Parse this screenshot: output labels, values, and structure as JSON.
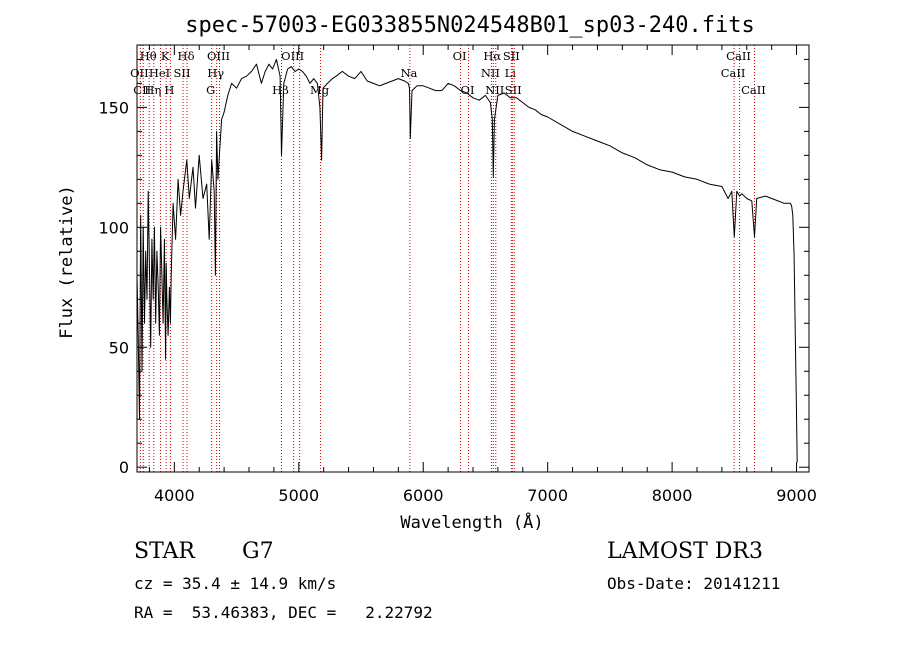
{
  "chart_data": {
    "type": "line",
    "title": "spec-57003-EG033855N024548B01_sp03-240.fits",
    "xlabel": "Wavelength (Å)",
    "ylabel": "Flux (relative)",
    "xlim": [
      3700,
      9100
    ],
    "ylim": [
      -2,
      176
    ],
    "xticks": [
      4000,
      5000,
      6000,
      7000,
      8000,
      9000
    ],
    "yticks": [
      0,
      50,
      100,
      150
    ],
    "series": [
      {
        "x": [
          3700,
          3710,
          3720,
          3730,
          3740,
          3750,
          3760,
          3770,
          3780,
          3790,
          3800,
          3810,
          3820,
          3830,
          3840,
          3850,
          3860,
          3870,
          3880,
          3890,
          3900,
          3910,
          3920,
          3930,
          3935,
          3940,
          3950,
          3960,
          3968,
          3975,
          3990,
          4010,
          4030,
          4050,
          4070,
          4100,
          4120,
          4150,
          4170,
          4200,
          4230,
          4260,
          4280,
          4300,
          4320,
          4330,
          4340,
          4350,
          4380,
          4400,
          4430,
          4460,
          4500,
          4540,
          4580,
          4620,
          4660,
          4700,
          4730,
          4760,
          4790,
          4820,
          4850,
          4861,
          4880,
          4910,
          4940,
          4970,
          5000,
          5030,
          5060,
          5090,
          5120,
          5150,
          5170,
          5183,
          5195,
          5230,
          5270,
          5300,
          5350,
          5400,
          5450,
          5500,
          5550,
          5600,
          5650,
          5700,
          5750,
          5800,
          5850,
          5880,
          5890,
          5896,
          5910,
          5950,
          6000,
          6050,
          6100,
          6150,
          6200,
          6250,
          6300,
          6350,
          6400,
          6450,
          6500,
          6540,
          6555,
          6563,
          6572,
          6600,
          6650,
          6700,
          6750,
          6800,
          6850,
          6900,
          6950,
          7000,
          7100,
          7200,
          7300,
          7400,
          7500,
          7600,
          7700,
          7800,
          7900,
          8000,
          8100,
          8200,
          8300,
          8400,
          8450,
          8480,
          8500,
          8520,
          8542,
          8560,
          8600,
          8640,
          8662,
          8680,
          8750,
          8800,
          8850,
          8900,
          8950,
          8960,
          8970,
          8980,
          8990,
          9000,
          9005
        ],
        "values": [
          80,
          55,
          20,
          105,
          40,
          100,
          60,
          90,
          70,
          115,
          85,
          50,
          95,
          70,
          100,
          60,
          90,
          75,
          55,
          100,
          80,
          60,
          95,
          45,
          85,
          70,
          55,
          75,
          60,
          80,
          110,
          95,
          120,
          105,
          115,
          128,
          112,
          125,
          108,
          130,
          112,
          118,
          95,
          128,
          115,
          80,
          140,
          120,
          145,
          148,
          155,
          160,
          158,
          162,
          163,
          165,
          168,
          160,
          165,
          168,
          166,
          170,
          163,
          130,
          160,
          166,
          167,
          165,
          166,
          165,
          163,
          160,
          162,
          160,
          150,
          128,
          158,
          160,
          162,
          163,
          165,
          163,
          162,
          165,
          161,
          160,
          159,
          160,
          161,
          162,
          161,
          160,
          158,
          137,
          157,
          159,
          159,
          158,
          157,
          157,
          160,
          159,
          157,
          156,
          154,
          153,
          155,
          152,
          145,
          121,
          145,
          155,
          156,
          154,
          154,
          152,
          150,
          149,
          147,
          146,
          143,
          140,
          138,
          136,
          134,
          131,
          129,
          126,
          124,
          123,
          121,
          120,
          118,
          117,
          112,
          115,
          96,
          115,
          113,
          114,
          112,
          111,
          96,
          112,
          113,
          112,
          111,
          110,
          110,
          109,
          105,
          88,
          55,
          20,
          2
        ]
      }
    ],
    "line_markers": [
      {
        "w": 3727,
        "label": "OII",
        "row": 1
      },
      {
        "w": 3750,
        "label": "CII",
        "row": 2
      },
      {
        "w": 3798,
        "label": "Hθ",
        "row": 0
      },
      {
        "w": 3835,
        "label": "Hη",
        "row": 2
      },
      {
        "w": 3889,
        "label": "HeI",
        "row": 1
      },
      {
        "w": 3934,
        "label": "K",
        "row": 0
      },
      {
        "w": 3968,
        "label": "H",
        "row": 2
      },
      {
        "w": 4070,
        "label": "SII",
        "row": 1
      },
      {
        "w": 4102,
        "label": "Hδ",
        "row": 0
      },
      {
        "w": 4300,
        "label": "G",
        "row": 2
      },
      {
        "w": 4340,
        "label": "Hγ",
        "row": 1
      },
      {
        "w": 4363,
        "label": "OIII",
        "row": 0
      },
      {
        "w": 4861,
        "label": "Hβ",
        "row": 2
      },
      {
        "w": 4959,
        "label": "OIII",
        "row": 0
      },
      {
        "w": 5007,
        "label": "",
        "row": 0
      },
      {
        "w": 5175,
        "label": "Mg",
        "row": 2
      },
      {
        "w": 5893,
        "label": "Na",
        "row": 1
      },
      {
        "w": 6300,
        "label": "OI",
        "row": 0
      },
      {
        "w": 6364,
        "label": "OI",
        "row": 2
      },
      {
        "w": 6548,
        "label": "NII",
        "row": 1
      },
      {
        "w": 6563,
        "label": "Hα",
        "row": 0
      },
      {
        "w": 6583,
        "label": "NII",
        "row": 2
      },
      {
        "w": 6708,
        "label": "Li",
        "row": 1
      },
      {
        "w": 6716,
        "label": "SII",
        "row": 0
      },
      {
        "w": 6731,
        "label": "SII",
        "row": 2
      },
      {
        "w": 8498,
        "label": "CaII",
        "row": 1
      },
      {
        "w": 8542,
        "label": "CaII",
        "row": 0
      },
      {
        "w": 8662,
        "label": "CaII",
        "row": 2
      }
    ]
  },
  "info": {
    "object_class": "STAR",
    "subclass": "G7",
    "survey": "LAMOST DR3",
    "cz_line": "cz = 35.4 ± 14.9 km/s",
    "obs_date_line": "Obs-Date: 20141211",
    "radec_line": "RA =  53.46383, DEC =   2.22792"
  },
  "colors": {
    "spectrum": "#000000",
    "line_marker": "#cc0000",
    "background": "#ffffff"
  }
}
